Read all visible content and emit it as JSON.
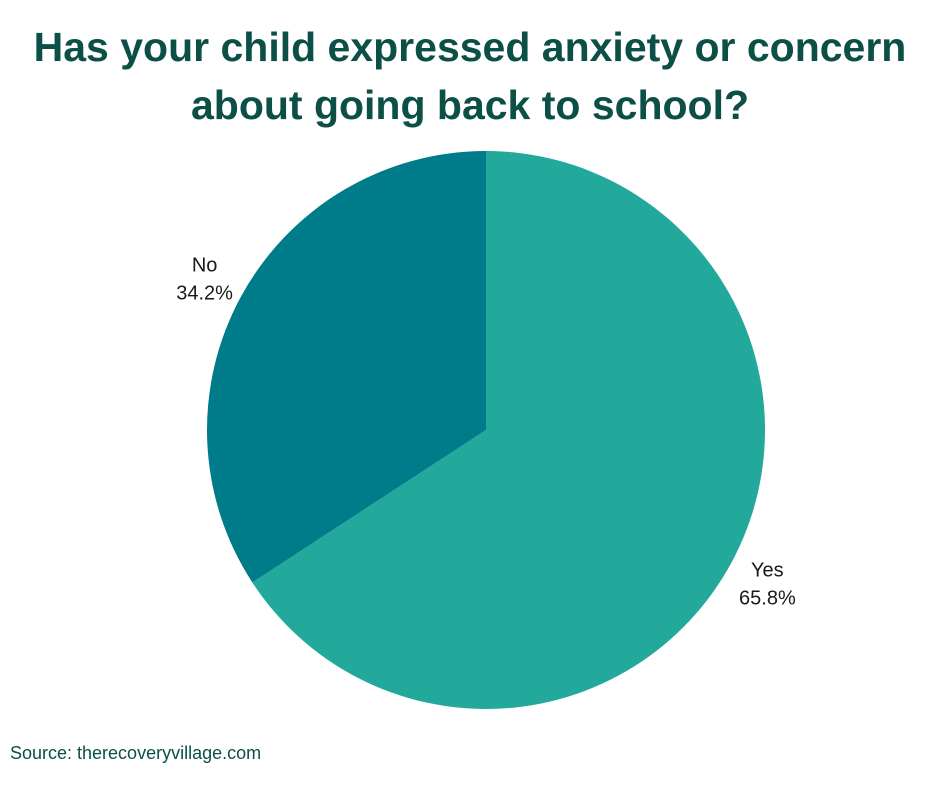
{
  "chart_data": {
    "type": "pie",
    "title_lines": [
      "Has your child expressed anxiety or concern",
      "about going back to school?"
    ],
    "slices": [
      {
        "label": "Yes",
        "percent_label": "65.8%",
        "value": 65.8,
        "color": "#23a89c"
      },
      {
        "label": "No",
        "percent_label": "34.2%",
        "value": 34.2,
        "color": "#007b89"
      }
    ],
    "start": "12 o'clock",
    "direction": "clockwise",
    "legend": "none"
  },
  "source": "Source: therecoveryvillage.com"
}
